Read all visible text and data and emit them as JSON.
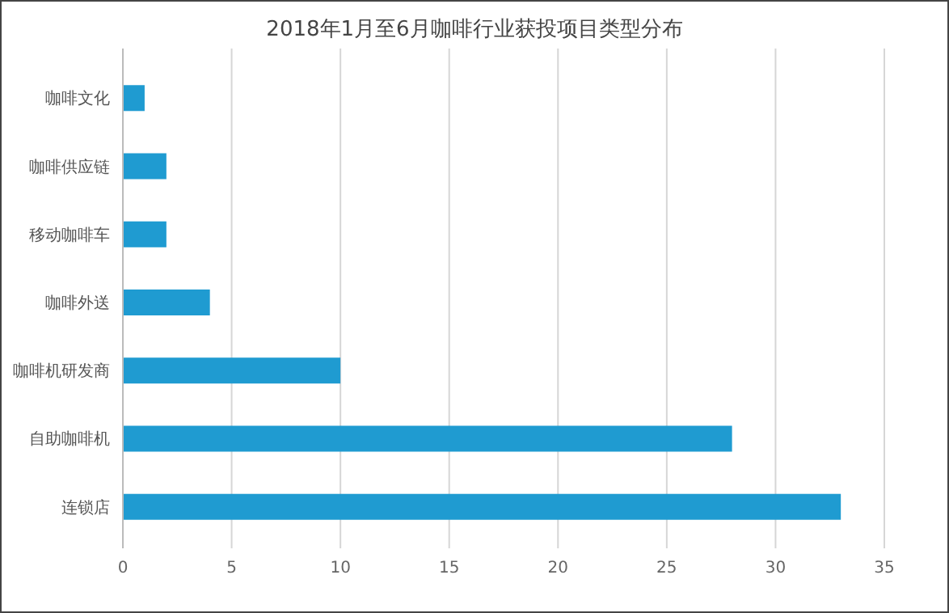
{
  "chart_data": {
    "type": "bar",
    "orientation": "horizontal",
    "title": "2018年1月至6月咖啡行业获投项目类型分布",
    "categories": [
      "咖啡文化",
      "咖啡供应链",
      "移动咖啡车",
      "咖啡外送",
      "咖啡机研发商",
      "自助咖啡机",
      "连锁店"
    ],
    "values": [
      1,
      2,
      2,
      4,
      10,
      28,
      33
    ],
    "color": "#1f9bd1",
    "xlim": [
      0,
      35
    ],
    "xticks": [
      0,
      5,
      10,
      15,
      20,
      25,
      30,
      35
    ],
    "grid": "x"
  }
}
